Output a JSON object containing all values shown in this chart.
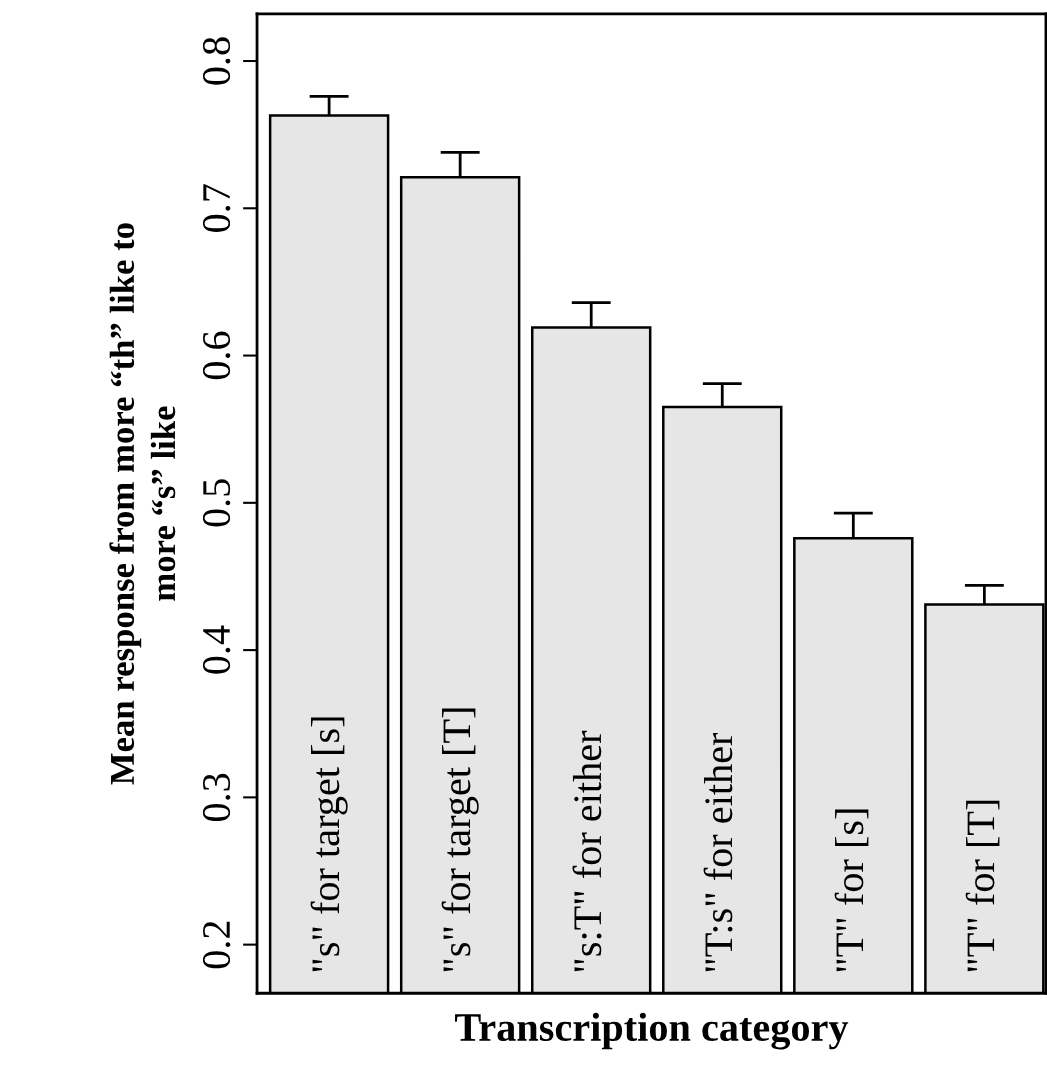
{
  "chart_data": {
    "type": "bar",
    "xlabel": "Transcription category",
    "ylabel": "Mean response from more “th” like to\nmore “s” like",
    "categories": [
      "\"s\" for target [s]",
      "\"s\" for target [T]",
      "\"s:T\" for either",
      "\"T:s\" for either",
      "\"T\" for [s]",
      "\"T\" for [T]"
    ],
    "values": [
      0.763,
      0.721,
      0.619,
      0.565,
      0.476,
      0.431
    ],
    "errors": [
      0.013,
      0.017,
      0.017,
      0.016,
      0.017,
      0.013
    ],
    "color": "#e6e6e6",
    "ylim": [
      0.167,
      0.832
    ],
    "yticks": [
      0.2,
      0.3,
      0.4,
      0.5,
      0.6,
      0.7,
      0.8
    ],
    "grid": false,
    "legend": false
  }
}
